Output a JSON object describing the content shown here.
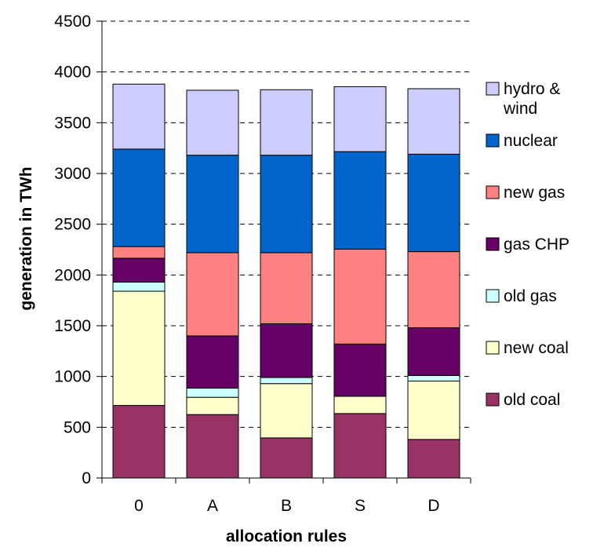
{
  "chart_data": {
    "type": "bar",
    "stacked": true,
    "xlabel": "allocation rules",
    "ylabel": "generation in TWh",
    "ylim": [
      0,
      4500
    ],
    "yticks": [
      0,
      500,
      1000,
      1500,
      2000,
      2500,
      3000,
      3500,
      4000,
      4500
    ],
    "grid": true,
    "legend_position": "right",
    "categories": [
      "0",
      "A",
      "B",
      "S",
      "D"
    ],
    "series": [
      {
        "name": "old coal",
        "color": "#993366",
        "values": [
          715,
          625,
          395,
          635,
          380
        ]
      },
      {
        "name": "new coal",
        "color": "#FFFFCC",
        "values": [
          1125,
          170,
          535,
          170,
          575
        ]
      },
      {
        "name": "old gas",
        "color": "#CCFFFF",
        "values": [
          90,
          90,
          60,
          0,
          55
        ]
      },
      {
        "name": "gas CHP",
        "color": "#660066",
        "values": [
          235,
          515,
          530,
          515,
          470
        ]
      },
      {
        "name": "new gas",
        "color": "#FF8080",
        "values": [
          115,
          820,
          700,
          935,
          750
        ]
      },
      {
        "name": "nuclear",
        "color": "#0066CC",
        "values": [
          960,
          960,
          960,
          960,
          960
        ]
      },
      {
        "name": "hydro & wind",
        "color": "#CCCCFF",
        "values": [
          640,
          640,
          645,
          640,
          645
        ]
      }
    ]
  }
}
